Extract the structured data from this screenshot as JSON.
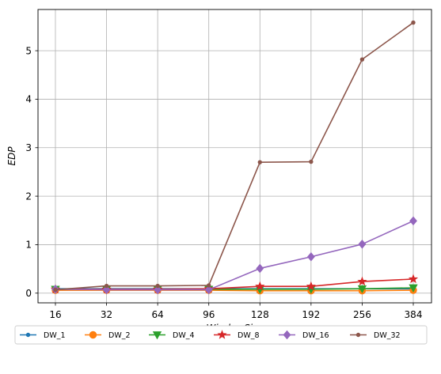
{
  "chart_data": {
    "type": "line",
    "title": "",
    "xlabel": "WindowSize",
    "ylabel": "EDP",
    "categories": [
      "16",
      "32",
      "64",
      "96",
      "128",
      "192",
      "256",
      "384"
    ],
    "ylim": [
      -0.2,
      5.85
    ],
    "yticks": [
      "0",
      "1",
      "2",
      "3",
      "4",
      "5"
    ],
    "grid": true,
    "legend": "bottom",
    "series": [
      {
        "name": "DW_1",
        "color": "#1f77b4",
        "marker": "point",
        "values": [
          0.09,
          0.09,
          0.09,
          0.09,
          0.09,
          0.09,
          0.09,
          0.09
        ]
      },
      {
        "name": "DW_2",
        "color": "#ff7f0e",
        "marker": "circle",
        "values": [
          0.06,
          0.06,
          0.06,
          0.06,
          0.05,
          0.05,
          0.05,
          0.06
        ]
      },
      {
        "name": "DW_4",
        "color": "#2ca02c",
        "marker": "triangle",
        "values": [
          0.08,
          0.08,
          0.08,
          0.08,
          0.08,
          0.08,
          0.09,
          0.11
        ]
      },
      {
        "name": "DW_8",
        "color": "#d62728",
        "marker": "star",
        "values": [
          0.08,
          0.08,
          0.08,
          0.09,
          0.14,
          0.14,
          0.24,
          0.29
        ]
      },
      {
        "name": "DW_16",
        "color": "#9467bd",
        "marker": "diamond",
        "values": [
          0.08,
          0.07,
          0.07,
          0.07,
          0.51,
          0.75,
          1.01,
          1.49
        ]
      },
      {
        "name": "DW_32",
        "color": "#8c564b",
        "marker": "point",
        "values": [
          0.07,
          0.15,
          0.15,
          0.16,
          2.7,
          2.71,
          4.82,
          5.58
        ]
      }
    ]
  }
}
